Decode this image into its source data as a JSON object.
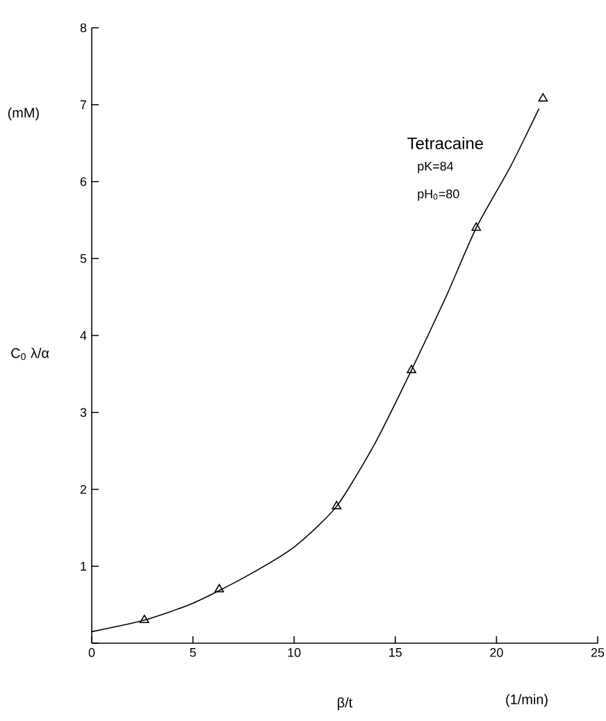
{
  "chart_data": {
    "type": "scatter",
    "xlabel": "β/t",
    "ylabel": "C$_{0}$ λ/α",
    "annotations": [
      "(mM)",
      "(1/min)",
      "Tetracaine",
      "pK=84",
      "pH$_{0}$=80"
    ],
    "xlim": [
      0,
      25
    ],
    "ylim": [
      0,
      8
    ],
    "xticks": [
      0,
      5,
      10,
      15,
      20,
      25
    ],
    "yticks": [
      {
        "value": 0,
        "label": null
      },
      1,
      2,
      3,
      4,
      5,
      6,
      7,
      8
    ],
    "grid": false,
    "series": [
      {
        "type": "line",
        "color": "#000000",
        "marker": "none",
        "x": [
          0,
          2.6,
          5,
          7.5,
          10,
          12.1,
          14,
          15.8,
          17.5,
          19,
          20.7,
          22.1
        ],
        "values": [
          0.15,
          0.3,
          0.52,
          0.85,
          1.25,
          1.78,
          2.6,
          3.55,
          4.5,
          5.4,
          6.2,
          6.95
        ]
      },
      {
        "color": "#000000",
        "marker": "triangle",
        "x": [
          2.6,
          6.3,
          12.1,
          15.8,
          19,
          22.3
        ],
        "values": [
          0.3,
          0.7,
          1.78,
          3.55,
          5.4,
          7.08
        ]
      }
    ]
  }
}
